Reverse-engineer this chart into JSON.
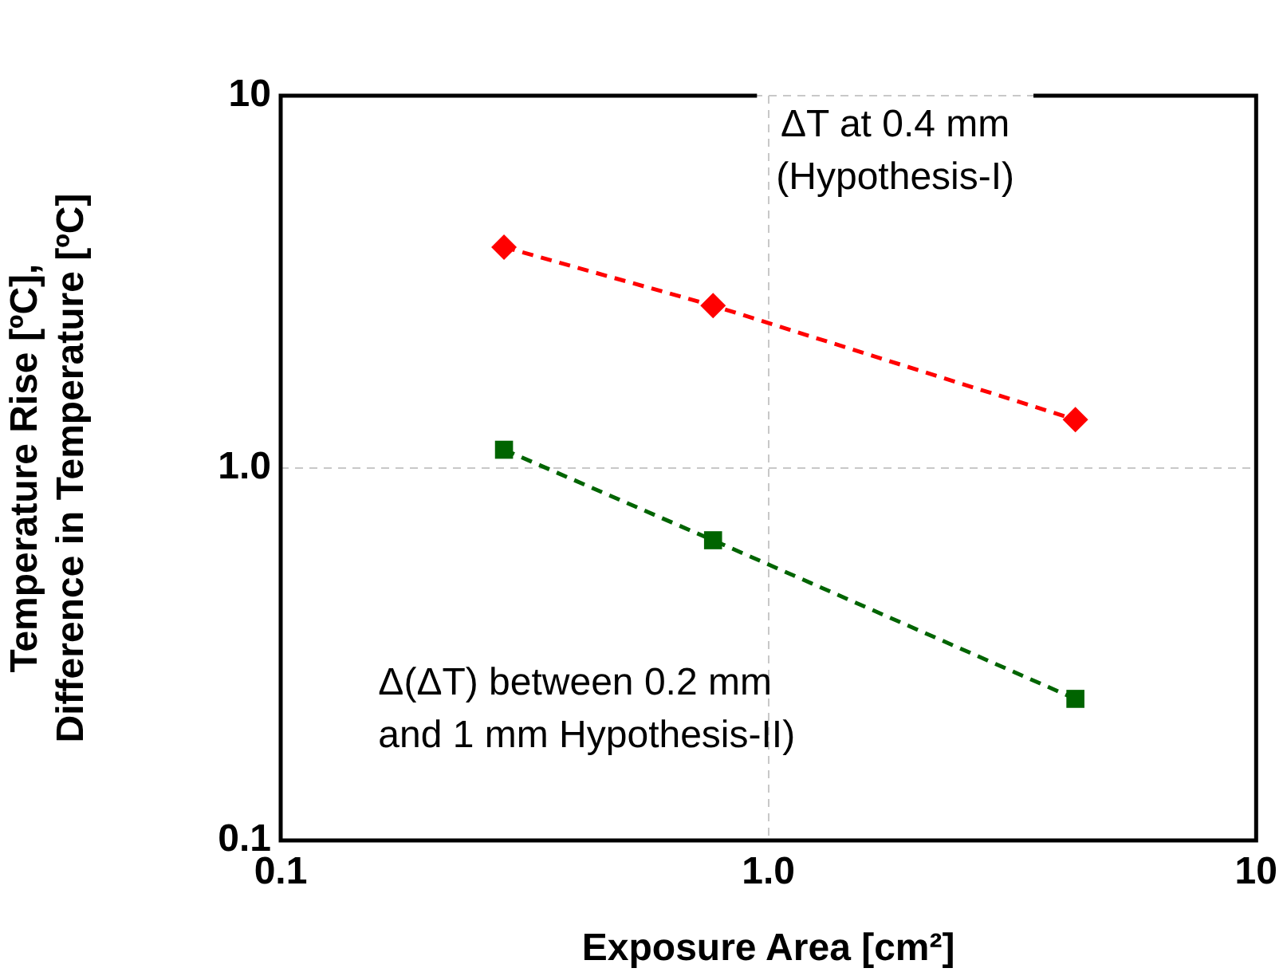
{
  "chart_data": {
    "type": "line",
    "xlabel": "Exposure Area [cm²]",
    "ylabel": "Temperature Rise [ºC],\nDifference in Temperature [ºC]",
    "x": [
      0.287,
      0.77,
      4.26
    ],
    "series": [
      {
        "color": "#ff0000",
        "marker": "diamond",
        "values": [
          3.92,
          2.73,
          1.35
        ]
      },
      {
        "color": "#006400",
        "marker": "square",
        "values": [
          1.12,
          0.64,
          0.24
        ]
      }
    ],
    "log": "xy",
    "line_style": "dashed",
    "grid": true,
    "legend": false,
    "xlim": [
      0.1,
      10
    ],
    "ylim": [
      0.1,
      10
    ],
    "xticks": [
      0.1,
      {
        "value": 1,
        "label": "1.0"
      },
      10
    ],
    "yticks": [
      0.1,
      {
        "value": 1,
        "label": "1.0"
      },
      10
    ],
    "annotations": [
      "ΔT at 0.4 mm\n(Hypothesis-I)",
      "Δ(ΔT) between 0.2 mm\nand 1 mm Hypothesis-II)"
    ]
  }
}
